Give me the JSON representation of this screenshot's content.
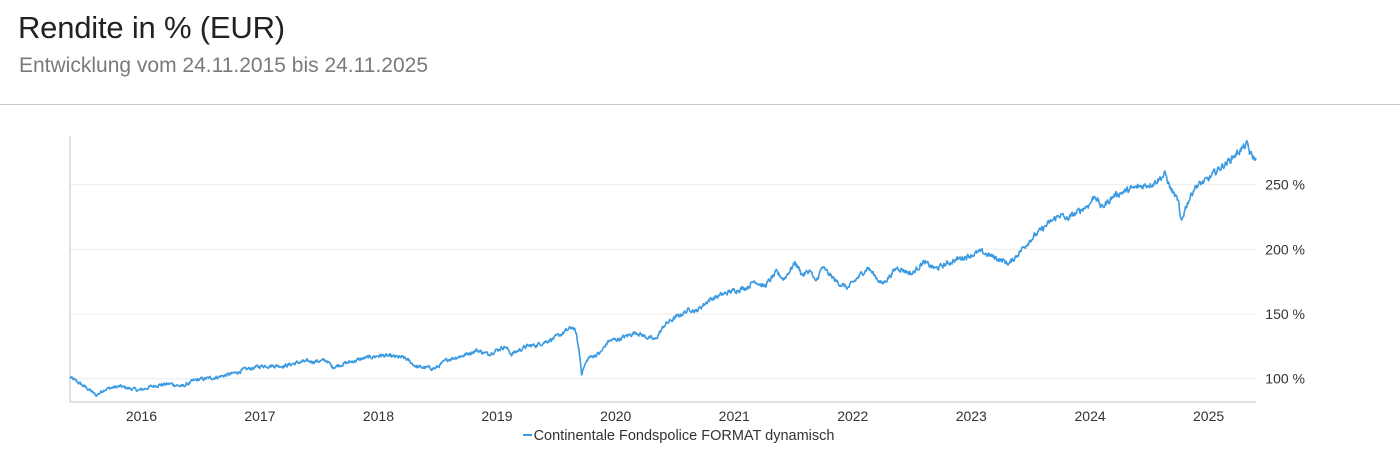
{
  "header": {
    "title": "Rendite in % (EUR)",
    "subtitle": "Entwicklung vom 24.11.2015 bis 24.11.2025"
  },
  "colors": {
    "series": "#3b9ae1",
    "grid": "#ececec",
    "axis": "#c4c4c4"
  },
  "chart_data": {
    "type": "line",
    "title": "Rendite in % (EUR)",
    "subtitle": "Entwicklung vom 24.11.2015 bis 24.11.2025",
    "xlabel": "",
    "ylabel": "",
    "xlim": [
      "2015-11-24",
      "2025-11-24"
    ],
    "ylim": [
      82,
      286
    ],
    "x_ticks": [
      {
        "label": "2016",
        "date": "2016-07-01"
      },
      {
        "label": "2017",
        "date": "2017-07-01"
      },
      {
        "label": "2018",
        "date": "2018-07-01"
      },
      {
        "label": "2019",
        "date": "2019-07-01"
      },
      {
        "label": "2020",
        "date": "2020-07-01"
      },
      {
        "label": "2021",
        "date": "2021-07-01"
      },
      {
        "label": "2022",
        "date": "2022-07-01"
      },
      {
        "label": "2023",
        "date": "2023-07-01"
      },
      {
        "label": "2024",
        "date": "2024-07-01"
      },
      {
        "label": "2025",
        "date": "2025-07-01"
      }
    ],
    "y_ticks": [
      {
        "value": 100,
        "label": "100 %"
      },
      {
        "value": 150,
        "label": "150 %"
      },
      {
        "value": 200,
        "label": "200 %"
      },
      {
        "value": 250,
        "label": "250 %"
      }
    ],
    "grid": true,
    "legend_position": "bottom",
    "series": [
      {
        "name": "Continentale Fondspolice FORMAT dynamisch",
        "color": "#3b9ae1",
        "points": [
          [
            "2015-11-24",
            101
          ],
          [
            "2015-12-20",
            97
          ],
          [
            "2016-01-25",
            91
          ],
          [
            "2016-02-12",
            87
          ],
          [
            "2016-03-10",
            92
          ],
          [
            "2016-04-25",
            94
          ],
          [
            "2016-06-24",
            91
          ],
          [
            "2016-08-15",
            95
          ],
          [
            "2016-09-30",
            96
          ],
          [
            "2016-11-04",
            94
          ],
          [
            "2016-12-15",
            99
          ],
          [
            "2017-02-15",
            101
          ],
          [
            "2017-04-10",
            104
          ],
          [
            "2017-05-15",
            107
          ],
          [
            "2017-07-10",
            110
          ],
          [
            "2017-09-15",
            110
          ],
          [
            "2017-11-06",
            113
          ],
          [
            "2018-01-23",
            114
          ],
          [
            "2018-02-09",
            109
          ],
          [
            "2018-03-22",
            112
          ],
          [
            "2018-05-22",
            116
          ],
          [
            "2018-07-10",
            118
          ],
          [
            "2018-09-20",
            116
          ],
          [
            "2018-10-28",
            109
          ],
          [
            "2018-12-24",
            108
          ],
          [
            "2019-01-31",
            115
          ],
          [
            "2019-03-20",
            118
          ],
          [
            "2019-04-30",
            122
          ],
          [
            "2019-06-03",
            119
          ],
          [
            "2019-07-26",
            125
          ],
          [
            "2019-08-15",
            119
          ],
          [
            "2019-09-30",
            125
          ],
          [
            "2019-10-31",
            126
          ],
          [
            "2019-12-31",
            132
          ],
          [
            "2020-02-19",
            140
          ],
          [
            "2020-03-01",
            135
          ],
          [
            "2020-03-12",
            118
          ],
          [
            "2020-03-18",
            104
          ],
          [
            "2020-03-23",
            108
          ],
          [
            "2020-04-08",
            116
          ],
          [
            "2020-05-15",
            120
          ],
          [
            "2020-06-08",
            129
          ],
          [
            "2020-07-15",
            131
          ],
          [
            "2020-09-02",
            136
          ],
          [
            "2020-09-25",
            133
          ],
          [
            "2020-10-30",
            130
          ],
          [
            "2020-11-30",
            142
          ],
          [
            "2020-12-31",
            147
          ],
          [
            "2021-02-16",
            154
          ],
          [
            "2021-03-05",
            152
          ],
          [
            "2021-04-15",
            161
          ],
          [
            "2021-06-15",
            167
          ],
          [
            "2021-08-12",
            171
          ],
          [
            "2021-09-02",
            176
          ],
          [
            "2021-10-01",
            171
          ],
          [
            "2021-11-08",
            182
          ],
          [
            "2021-12-01",
            177
          ],
          [
            "2021-12-31",
            188
          ],
          [
            "2022-01-04",
            190
          ],
          [
            "2022-01-28",
            180
          ],
          [
            "2022-02-20",
            184
          ],
          [
            "2022-03-08",
            174
          ],
          [
            "2022-03-29",
            186
          ],
          [
            "2022-05-12",
            175
          ],
          [
            "2022-06-16",
            170
          ],
          [
            "2022-08-16",
            186
          ],
          [
            "2022-09-30",
            173
          ],
          [
            "2022-11-15",
            186
          ],
          [
            "2022-12-31",
            181
          ],
          [
            "2023-02-02",
            190
          ],
          [
            "2023-03-14",
            185
          ],
          [
            "2023-05-15",
            192
          ],
          [
            "2023-07-31",
            198
          ],
          [
            "2023-10-27",
            189
          ],
          [
            "2023-12-28",
            207
          ],
          [
            "2024-02-20",
            219
          ],
          [
            "2024-04-01",
            227
          ],
          [
            "2024-04-19",
            223
          ],
          [
            "2024-06-30",
            235
          ],
          [
            "2024-07-16",
            242
          ],
          [
            "2024-08-05",
            232
          ],
          [
            "2024-09-15",
            242
          ],
          [
            "2024-11-10",
            247
          ],
          [
            "2025-01-10",
            251
          ],
          [
            "2025-02-18",
            258
          ],
          [
            "2025-03-04",
            248
          ],
          [
            "2025-03-31",
            236
          ],
          [
            "2025-04-04",
            224
          ],
          [
            "2025-04-08",
            221
          ],
          [
            "2025-04-20",
            232
          ],
          [
            "2025-05-19",
            248
          ],
          [
            "2025-06-30",
            254
          ],
          [
            "2025-07-31",
            262
          ],
          [
            "2025-08-31",
            268
          ],
          [
            "2025-10-08",
            277
          ],
          [
            "2025-10-29",
            281
          ],
          [
            "2025-11-05",
            274
          ],
          [
            "2025-11-24",
            269
          ]
        ]
      }
    ]
  },
  "legend": {
    "items": [
      {
        "label": "Continentale Fondspolice FORMAT dynamisch"
      }
    ]
  }
}
